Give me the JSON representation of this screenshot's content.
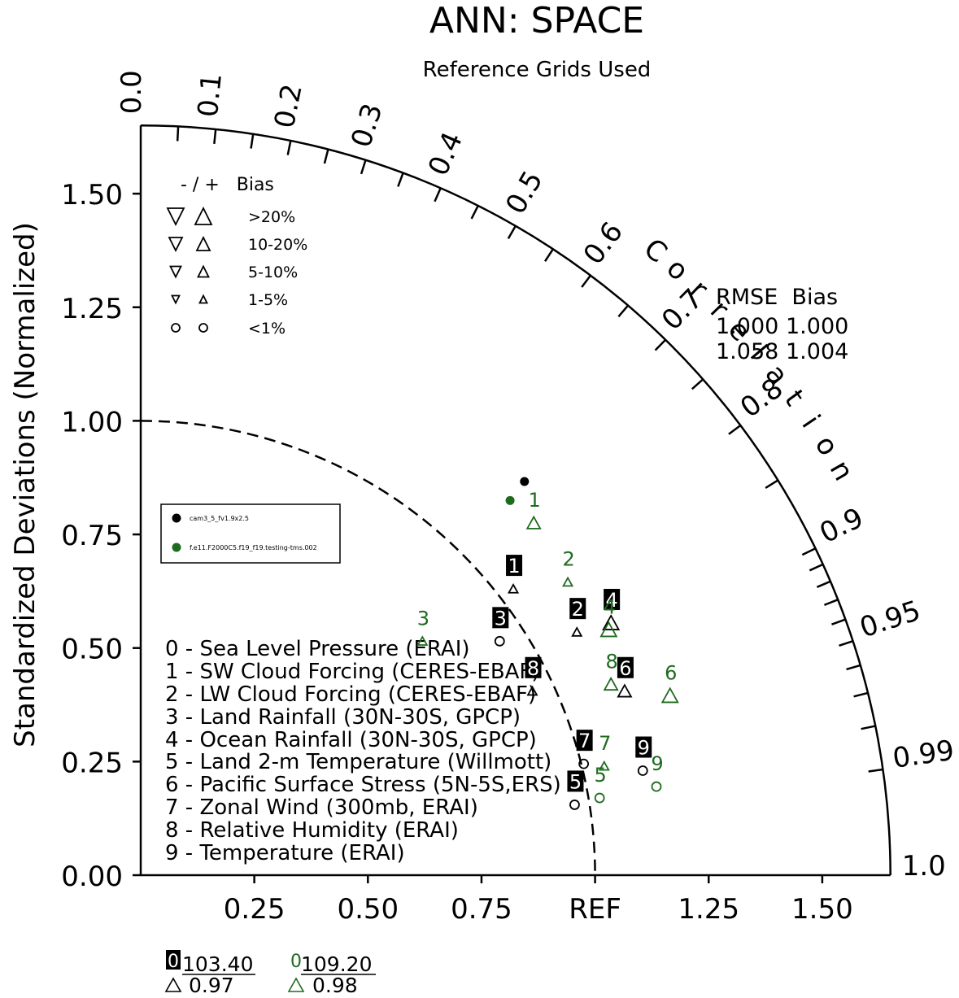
{
  "chart_data": {
    "type": "scatter",
    "title": "ANN: SPACE",
    "subtitle": "Reference Grids Used",
    "ylabel": "Standardized Deviations (Normalized)",
    "arc_label": "Correlation",
    "axis_max": 1.65,
    "std_ticks": [
      {
        "v": 0.0,
        "label": "0.00"
      },
      {
        "v": 0.25,
        "label": "0.25"
      },
      {
        "v": 0.5,
        "label": "0.50"
      },
      {
        "v": 0.75,
        "label": "0.75"
      },
      {
        "v": 1.0,
        "label": "1.00"
      },
      {
        "v": 1.25,
        "label": "1.25"
      },
      {
        "v": 1.5,
        "label": "1.50"
      }
    ],
    "x_labels": [
      {
        "v": 0.25,
        "label": "0.25"
      },
      {
        "v": 0.5,
        "label": "0.50"
      },
      {
        "v": 0.75,
        "label": "0.75"
      },
      {
        "v": 1.0,
        "label": "REF"
      },
      {
        "v": 1.25,
        "label": "1.25"
      },
      {
        "v": 1.5,
        "label": "1.50"
      }
    ],
    "corr_labels": [
      "0.0",
      "0.1",
      "0.2",
      "0.3",
      "0.4",
      "0.5",
      "0.6",
      "0.7",
      "0.8",
      "0.9",
      "0.95",
      "0.99",
      "1.0"
    ],
    "series": [
      {
        "name": "cam3_5_fv1.9x2.5",
        "color": "#000000",
        "style": "boxed",
        "points": [
          {
            "id": "1",
            "x": 0.82,
            "y": 0.63,
            "marker": "triangle-up-small"
          },
          {
            "id": "2",
            "x": 0.96,
            "y": 0.535,
            "marker": "triangle-up-small"
          },
          {
            "id": "3",
            "x": 0.79,
            "y": 0.515,
            "marker": "circle"
          },
          {
            "id": "4",
            "x": 1.035,
            "y": 0.555,
            "marker": "triangle-up-large"
          },
          {
            "id": "5",
            "x": 0.955,
            "y": 0.155,
            "marker": "circle"
          },
          {
            "id": "6",
            "x": 1.065,
            "y": 0.405,
            "marker": "triangle-up"
          },
          {
            "id": "7",
            "x": 0.975,
            "y": 0.245,
            "marker": "circle"
          },
          {
            "id": "8",
            "x": 0.862,
            "y": 0.405,
            "marker": "triangle-up-small"
          },
          {
            "id": "9",
            "x": 1.105,
            "y": 0.23,
            "marker": "circle"
          }
        ]
      },
      {
        "name": "f.e11.F2000C5.f19_f19.testing-tms.002",
        "color": "#1e6b1e",
        "style": "boxed",
        "points": [
          {
            "id": "1",
            "x": 0.865,
            "y": 0.775,
            "marker": "triangle-up"
          },
          {
            "id": "2",
            "x": 0.94,
            "y": 0.645,
            "marker": "triangle-up-small"
          },
          {
            "id": "3",
            "x": 0.62,
            "y": 0.515,
            "marker": "triangle-up-small"
          },
          {
            "id": "4",
            "x": 1.03,
            "y": 0.54,
            "marker": "triangle-up-large"
          },
          {
            "id": "5",
            "x": 1.01,
            "y": 0.17,
            "marker": "circle"
          },
          {
            "id": "6",
            "x": 1.165,
            "y": 0.395,
            "marker": "triangle-up-large"
          },
          {
            "id": "7",
            "x": 1.02,
            "y": 0.24,
            "marker": "triangle-up-small"
          },
          {
            "id": "8",
            "x": 1.035,
            "y": 0.42,
            "marker": "triangle-up"
          },
          {
            "id": "9",
            "x": 1.135,
            "y": 0.195,
            "marker": "circle"
          }
        ]
      }
    ],
    "reference_points": [
      {
        "std": 1.21,
        "corr": 0.698,
        "color": "#000000"
      },
      {
        "std": 1.158,
        "corr": 0.702,
        "color": "#1e6b1e"
      }
    ]
  },
  "bias_legend": {
    "header": "- / +   Bias",
    "rows": [
      ">20%",
      "10-20%",
      "5-10%",
      "1-5%",
      "<1%"
    ]
  },
  "rmse_table": {
    "header": "RMSE  Bias",
    "rows": [
      {
        "rmse": "1.000",
        "bias": "1.000",
        "color": "#000000"
      },
      {
        "rmse": "1.058",
        "bias": "1.004",
        "color": "#1e6b1e"
      }
    ]
  },
  "case_legend": [
    {
      "name": "cam3_5_fv1.9x2.5",
      "color": "#000000"
    },
    {
      "name": "f.e11.F2000C5.f19_f19.testing-tms.002",
      "color": "#1e6b1e"
    }
  ],
  "variables": [
    "0 - Sea Level Pressure (ERAI)",
    "1 - SW Cloud Forcing (CERES-EBAF)",
    "2 - LW Cloud Forcing (CERES-EBAF)",
    "3 - Land Rainfall (30N-30S, GPCP)",
    "4 - Ocean Rainfall (30N-30S, GPCP)",
    "5 - Land 2-m Temperature (Willmott)",
    "6 - Pacific Surface Stress (5N-5S,ERS)",
    "7 - Zonal Wind (300mb, ERAI)",
    "8 - Relative Humidity (ERAI)",
    "9 - Temperature (ERAI)"
  ],
  "offscale": [
    {
      "id": "0",
      "top": "103.40",
      "bottom": "0.97",
      "color": "#000000"
    },
    {
      "id": "0",
      "top": "109.20",
      "bottom": "0.98",
      "color": "#1e6b1e"
    }
  ]
}
